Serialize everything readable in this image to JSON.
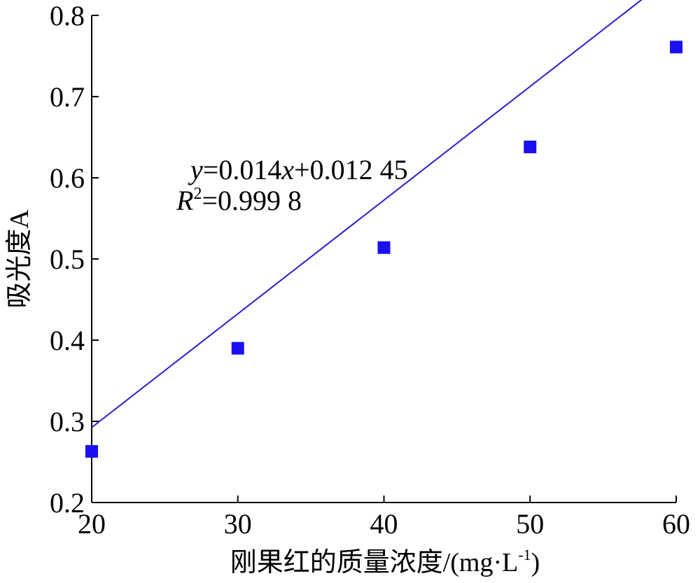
{
  "chart_data": {
    "type": "scatter",
    "title": "",
    "xlabel": "刚果红的质量浓度/(mg·L",
    "xlabel_sup": "-1",
    "xlabel_end": ")",
    "ylabel": "吸光度A",
    "xlim": [
      20,
      60
    ],
    "ylim": [
      0.2,
      0.8
    ],
    "xticks": [
      "20",
      "30",
      "40",
      "50",
      "60"
    ],
    "yticks": [
      "0.2",
      "0.3",
      "0.4",
      "0.5",
      "0.6",
      "0.7",
      "0.8"
    ],
    "grid": false,
    "series": [
      {
        "marker": "square",
        "color": "#1a10f0",
        "x": [
          20,
          30,
          40,
          50,
          60
        ],
        "y": [
          0.263,
          0.39,
          0.514,
          0.638,
          0.761
        ]
      }
    ],
    "fit_line": {
      "slope": 0.014,
      "intercept": 0.01245,
      "color": "#2a1ccc"
    },
    "annotations": {
      "equation": {
        "y_var": "y",
        "eq1": "=0.014",
        "x_var": "x",
        "eq2": "+0.012 45"
      },
      "r2": {
        "r_var": "R",
        "sup": "2",
        "value": "=0.999 8"
      }
    }
  }
}
